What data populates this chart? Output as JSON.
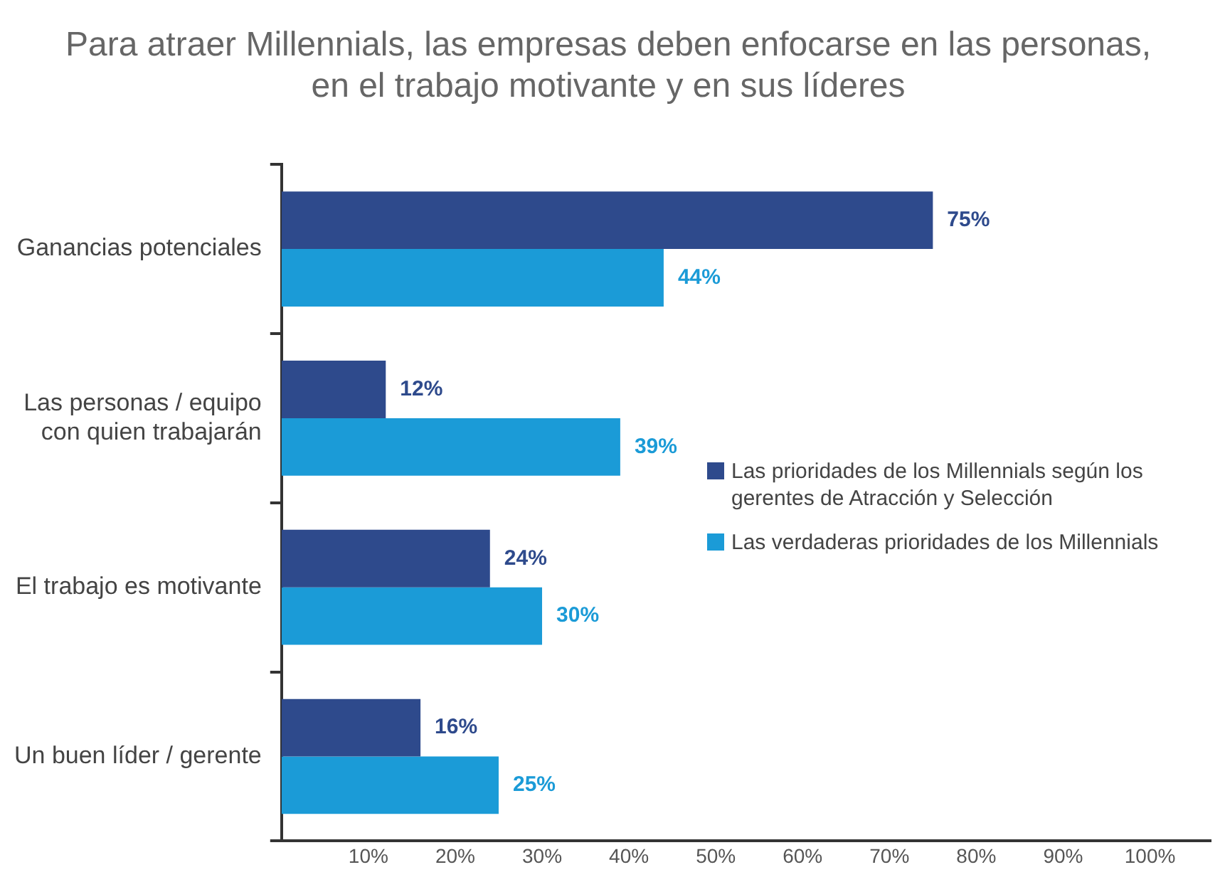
{
  "chart_data": {
    "type": "bar",
    "orientation": "horizontal",
    "title": "Para atraer Millennials, las empresas deben enfocarse en las personas,\nen el trabajo motivante y en sus líderes",
    "categories": [
      "Ganancias potenciales",
      "Las personas / equipo\ncon quien trabajarán",
      "El trabajo es motivante",
      "Un buen líder / gerente"
    ],
    "series": [
      {
        "name": "Las prioridades de los Millennials según los gerentes de Atracción y Selección",
        "color": "#2e4a8c",
        "values": [
          75,
          12,
          24,
          16
        ],
        "value_labels": [
          "75%",
          "12%",
          "24%",
          "16%"
        ]
      },
      {
        "name": "Las verdaderas prioridades de los Millennials",
        "color": "#1b9bd7",
        "values": [
          44,
          39,
          30,
          25
        ],
        "value_labels": [
          "44%",
          "39%",
          "30%",
          "25%"
        ]
      }
    ],
    "xlim": [
      0,
      107
    ],
    "xticks": [
      {
        "value": 10,
        "label": "10%"
      },
      {
        "value": 20,
        "label": "20%"
      },
      {
        "value": 30,
        "label": "30%"
      },
      {
        "value": 40,
        "label": "40%"
      },
      {
        "value": 50,
        "label": "50%"
      },
      {
        "value": 60,
        "label": "60%"
      },
      {
        "value": 70,
        "label": "70%"
      },
      {
        "value": 80,
        "label": "80%"
      },
      {
        "value": 90,
        "label": "90%"
      },
      {
        "value": 100,
        "label": "100%"
      }
    ],
    "grid": false,
    "legend": "right"
  }
}
